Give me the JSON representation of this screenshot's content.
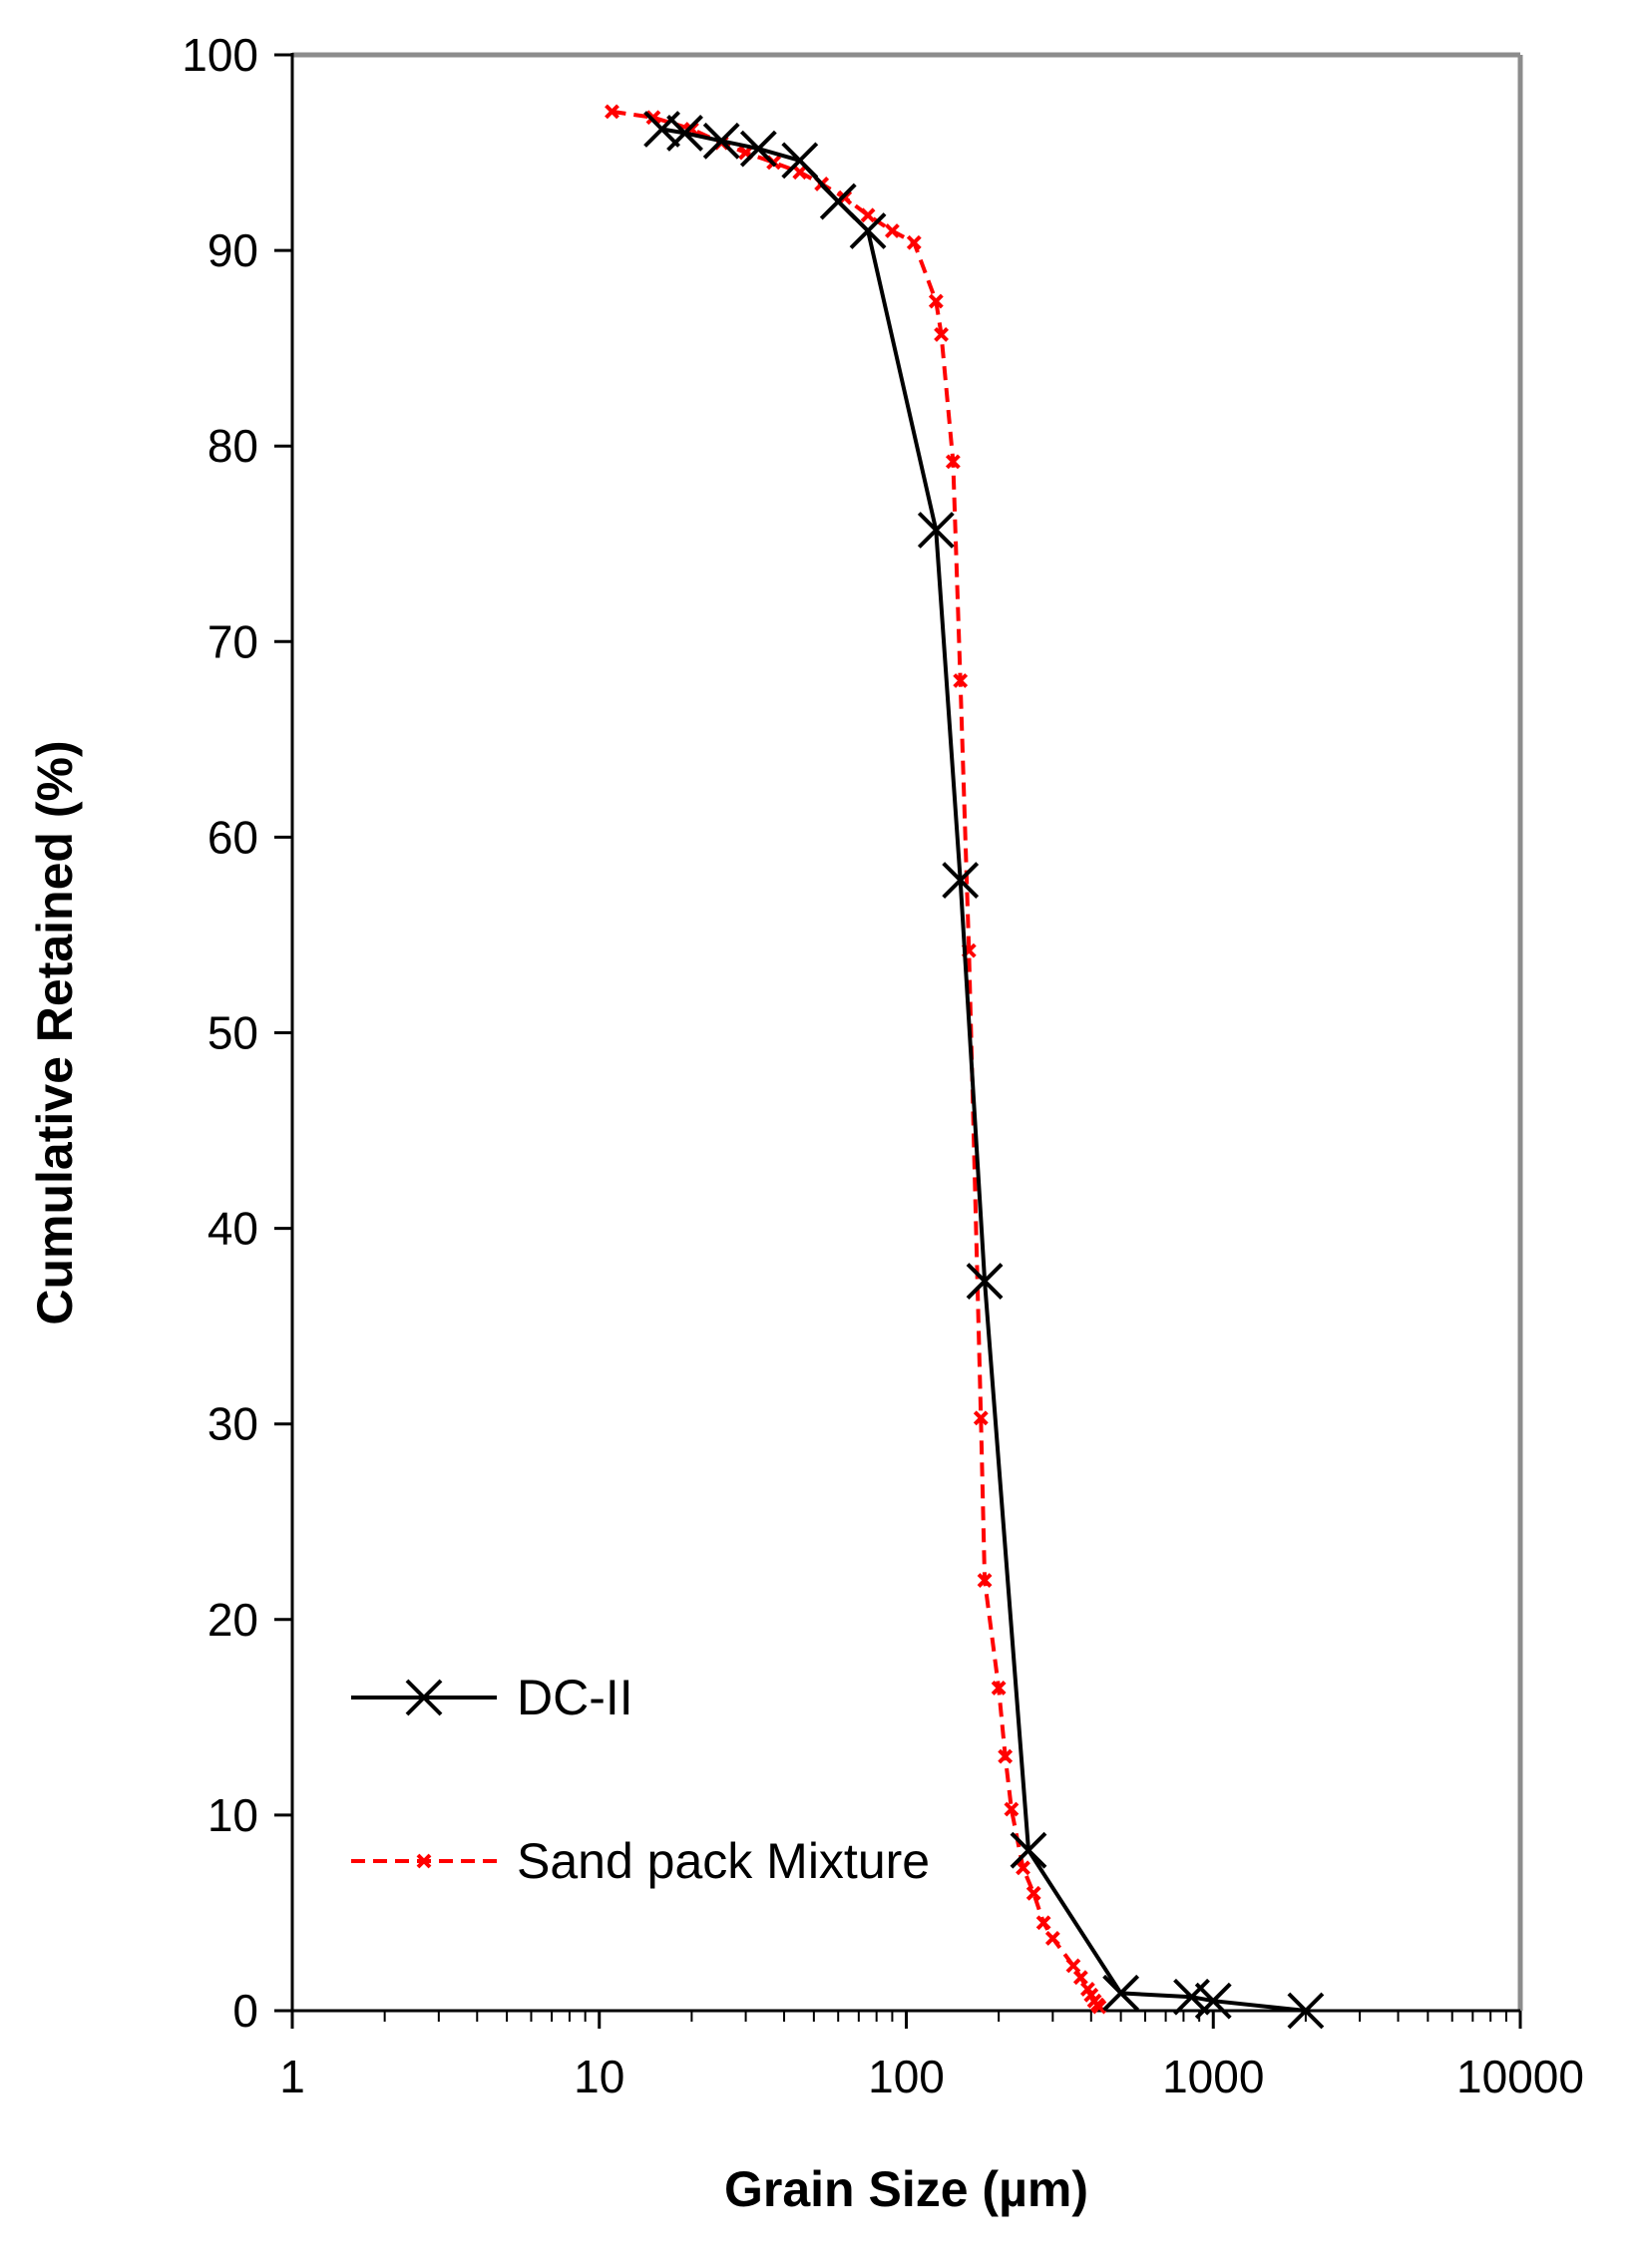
{
  "chart_data": {
    "type": "scatter",
    "title": "",
    "xlabel": "Grain Size (µm)",
    "ylabel": "Cumulative Retained (%)",
    "xscale": "log",
    "xlim": [
      1,
      10000
    ],
    "ylim": [
      0,
      100
    ],
    "x_ticks": [
      1,
      10,
      100,
      1000,
      10000
    ],
    "x_tick_labels": [
      "1",
      "10",
      "100",
      "1000",
      "10000"
    ],
    "y_ticks": [
      0,
      10,
      20,
      30,
      40,
      50,
      60,
      70,
      80,
      90,
      100
    ],
    "y_tick_labels": [
      "0",
      "10",
      "20",
      "30",
      "40",
      "50",
      "60",
      "70",
      "80",
      "90",
      "100"
    ],
    "grid": false,
    "legend_position": "bottom-left",
    "series": [
      {
        "name": "DC-II",
        "color": "#000000",
        "line_style": "solid",
        "marker": "x-large",
        "x": [
          16,
          19,
          25,
          33,
          45,
          60,
          75,
          125,
          150,
          180,
          250,
          500,
          850,
          1000,
          2000
        ],
        "y": [
          96.2,
          96.0,
          95.6,
          95.2,
          94.6,
          92.5,
          91.0,
          75.7,
          57.8,
          37.3,
          8.2,
          0.9,
          0.7,
          0.5,
          0.0
        ]
      },
      {
        "name": "Sand pack Mixture",
        "color": "#ff0000",
        "line_style": "dashed",
        "marker": "x-small",
        "x": [
          11,
          15,
          20,
          25,
          30,
          37,
          45,
          53,
          63,
          75,
          90,
          106,
          125,
          130,
          142,
          150,
          160,
          175,
          180,
          200,
          210,
          220,
          240,
          260,
          280,
          300,
          350,
          370,
          390,
          400,
          410,
          420,
          425
        ],
        "y": [
          97.1,
          96.8,
          96.2,
          95.5,
          95.0,
          94.5,
          94.0,
          93.4,
          92.7,
          91.8,
          91.0,
          90.4,
          87.4,
          85.7,
          79.2,
          68.0,
          54.2,
          30.3,
          22.0,
          16.5,
          13.0,
          10.3,
          7.3,
          6.0,
          4.5,
          3.7,
          2.3,
          1.7,
          1.1,
          0.8,
          0.5,
          0.3,
          0.2
        ]
      }
    ]
  }
}
